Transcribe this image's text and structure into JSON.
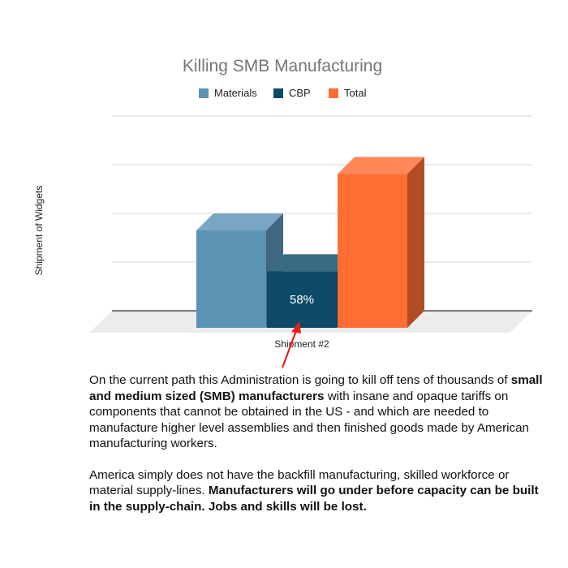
{
  "chart_data": {
    "type": "bar",
    "title": "Killing SMB Manufacturing",
    "ylabel": "Shipment of Widgets",
    "xlabel": "",
    "categories": [
      "Shipment #2"
    ],
    "series": [
      {
        "name": "Materials",
        "values": [
          100
        ],
        "color": "#5b93b5"
      },
      {
        "name": "CBP",
        "values": [
          58
        ],
        "color": "#0d4a68",
        "data_label": "58%"
      },
      {
        "name": "Total",
        "values": [
          158
        ],
        "color": "#ff6d33"
      }
    ],
    "ylim": [
      0,
      200
    ],
    "gridlines": true,
    "legend_position": "top",
    "three_d": true
  },
  "caption": {
    "p1": {
      "a": "On the current path this Administration is going to kill off tens of thousands of ",
      "b": "small and medium sized (SMB) manufacturers",
      "c": " with insane and opaque tariffs on components that cannot be obtained in the US - and which are needed to manufacture higher level assemblies and then finished goods made by American manufacturing workers."
    },
    "p2": {
      "a": "America simply does not have the backfill manufacturing, skilled workforce or material supply-lines. ",
      "b": "Manufacturers will go under before capacity can be built in the supply-chain. Jobs and skills will be lost."
    }
  },
  "annotation": {
    "arrow_color": "#e8201c"
  }
}
